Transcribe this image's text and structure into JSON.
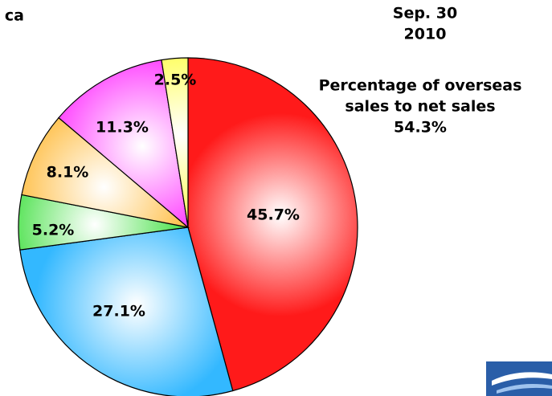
{
  "chart_data": {
    "type": "pie",
    "title": [
      "Sep. 30",
      "2010"
    ],
    "fragment": "ca",
    "annotation": [
      "Percentage of overseas",
      "sales to net sales",
      "54.3%"
    ],
    "values": [
      45.7,
      27.1,
      5.2,
      8.1,
      11.3,
      2.5
    ],
    "value_labels": [
      "45.7%",
      "27.1%",
      "5.2%",
      "8.1%",
      "11.3%",
      "2.5%"
    ],
    "colors": [
      "#ff1a1a",
      "#33b8ff",
      "#2edc2e",
      "#ffb62e",
      "#ff2eff",
      "#ffff3a"
    ]
  }
}
